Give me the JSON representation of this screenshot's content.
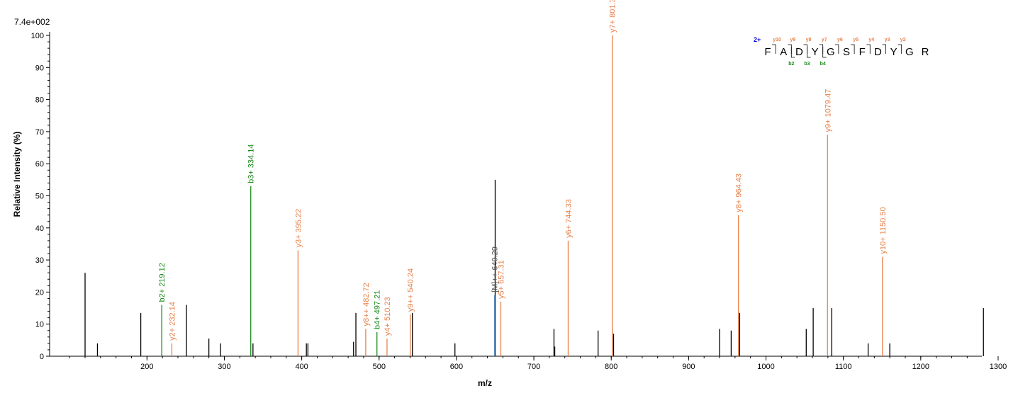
{
  "colors": {
    "y_ion": "#E8824A",
    "b_ion": "#1A8A1A",
    "unassigned": "#000000",
    "precursor": "#4A7FB5",
    "charge": "#0000CC",
    "axis": "#000000"
  },
  "header": {
    "max_intensity": "7.4e+002"
  },
  "chart_data": {
    "type": "bar",
    "xlabel": "m/z",
    "ylabel": "Relative   Intensity (%)",
    "xlim": [
      70,
      1385
    ],
    "ylim": [
      0,
      102
    ],
    "x_ticks": [
      200,
      300,
      400,
      500,
      600,
      700,
      800,
      900,
      1000,
      1100,
      1200,
      1300
    ],
    "y_ticks": [
      0,
      10,
      20,
      30,
      40,
      50,
      60,
      70,
      80,
      90,
      100
    ],
    "peaks_unassigned": [
      {
        "mz": 120.0,
        "intensity": 26
      },
      {
        "mz": 136.0,
        "intensity": 4
      },
      {
        "mz": 192.0,
        "intensity": 13.5
      },
      {
        "mz": 251.0,
        "intensity": 16
      },
      {
        "mz": 280.0,
        "intensity": 5.5
      },
      {
        "mz": 295.0,
        "intensity": 4
      },
      {
        "mz": 337.0,
        "intensity": 4
      },
      {
        "mz": 406.0,
        "intensity": 4
      },
      {
        "mz": 408.0,
        "intensity": 4
      },
      {
        "mz": 467.0,
        "intensity": 4.5
      },
      {
        "mz": 470.0,
        "intensity": 13.5
      },
      {
        "mz": 543.0,
        "intensity": 13.5
      },
      {
        "mz": 598.0,
        "intensity": 4
      },
      {
        "mz": 650.0,
        "intensity": 55
      },
      {
        "mz": 726.0,
        "intensity": 8.5
      },
      {
        "mz": 727.0,
        "intensity": 3
      },
      {
        "mz": 783.0,
        "intensity": 8
      },
      {
        "mz": 803.0,
        "intensity": 7
      },
      {
        "mz": 940.0,
        "intensity": 8.5
      },
      {
        "mz": 955.0,
        "intensity": 8
      },
      {
        "mz": 966.0,
        "intensity": 13.5
      },
      {
        "mz": 1052.0,
        "intensity": 8.5
      },
      {
        "mz": 1061.0,
        "intensity": 15
      },
      {
        "mz": 1085.0,
        "intensity": 15
      },
      {
        "mz": 1132.0,
        "intensity": 4
      },
      {
        "mz": 1160.0,
        "intensity": 4
      },
      {
        "mz": 1281.0,
        "intensity": 15
      }
    ],
    "peaks_labeled": [
      {
        "mz": 219.12,
        "intensity": 16,
        "ion": "b",
        "label": "b2+ 219.12"
      },
      {
        "mz": 232.14,
        "intensity": 4,
        "ion": "y",
        "label": "y2+ 232.14"
      },
      {
        "mz": 334.14,
        "intensity": 53,
        "ion": "b",
        "label": "b3+ 334.14"
      },
      {
        "mz": 395.22,
        "intensity": 33,
        "ion": "y",
        "label": "y3+ 395.22"
      },
      {
        "mz": 482.72,
        "intensity": 8.5,
        "ion": "y",
        "label": "y8++ 482.72"
      },
      {
        "mz": 497.21,
        "intensity": 7.5,
        "ion": "b",
        "label": "b4+ 497.21"
      },
      {
        "mz": 510.23,
        "intensity": 5.5,
        "ion": "y",
        "label": "y4+ 510.23"
      },
      {
        "mz": 540.24,
        "intensity": 13,
        "ion": "y",
        "label": "y9++ 540.24"
      },
      {
        "mz": 649.29,
        "intensity": 19,
        "ion": "precursor",
        "label": "[M]++ 649.29"
      },
      {
        "mz": 657.31,
        "intensity": 17,
        "ion": "y",
        "label": "y5+ 657.31"
      },
      {
        "mz": 744.33,
        "intensity": 36,
        "ion": "y",
        "label": "y6+ 744.33"
      },
      {
        "mz": 801.37,
        "intensity": 100,
        "ion": "y",
        "label": "y7+ 801.37"
      },
      {
        "mz": 964.43,
        "intensity": 44,
        "ion": "y",
        "label": "y8+ 964.43"
      },
      {
        "mz": 1079.47,
        "intensity": 69,
        "ion": "y",
        "label": "y9+ 1079.47"
      },
      {
        "mz": 1150.5,
        "intensity": 31,
        "ion": "y",
        "label": "y10+ 1150.50"
      }
    ]
  },
  "sequence": {
    "charge": "2+",
    "residues": [
      "F",
      "A",
      "D",
      "Y",
      "G",
      "S",
      "F",
      "D",
      "Y",
      "G",
      "R"
    ],
    "y_ions": [
      {
        "label": "y10",
        "after": 1
      },
      {
        "label": "y9",
        "after": 2
      },
      {
        "label": "y8",
        "after": 3
      },
      {
        "label": "y7",
        "after": 4
      },
      {
        "label": "y6",
        "after": 5
      },
      {
        "label": "y5",
        "after": 6
      },
      {
        "label": "y4",
        "after": 7
      },
      {
        "label": "y3",
        "after": 8
      },
      {
        "label": "y2",
        "after": 9
      }
    ],
    "b_ions": [
      {
        "label": "b2",
        "after": 2
      },
      {
        "label": "b3",
        "after": 3
      },
      {
        "label": "b4",
        "after": 4
      }
    ]
  }
}
